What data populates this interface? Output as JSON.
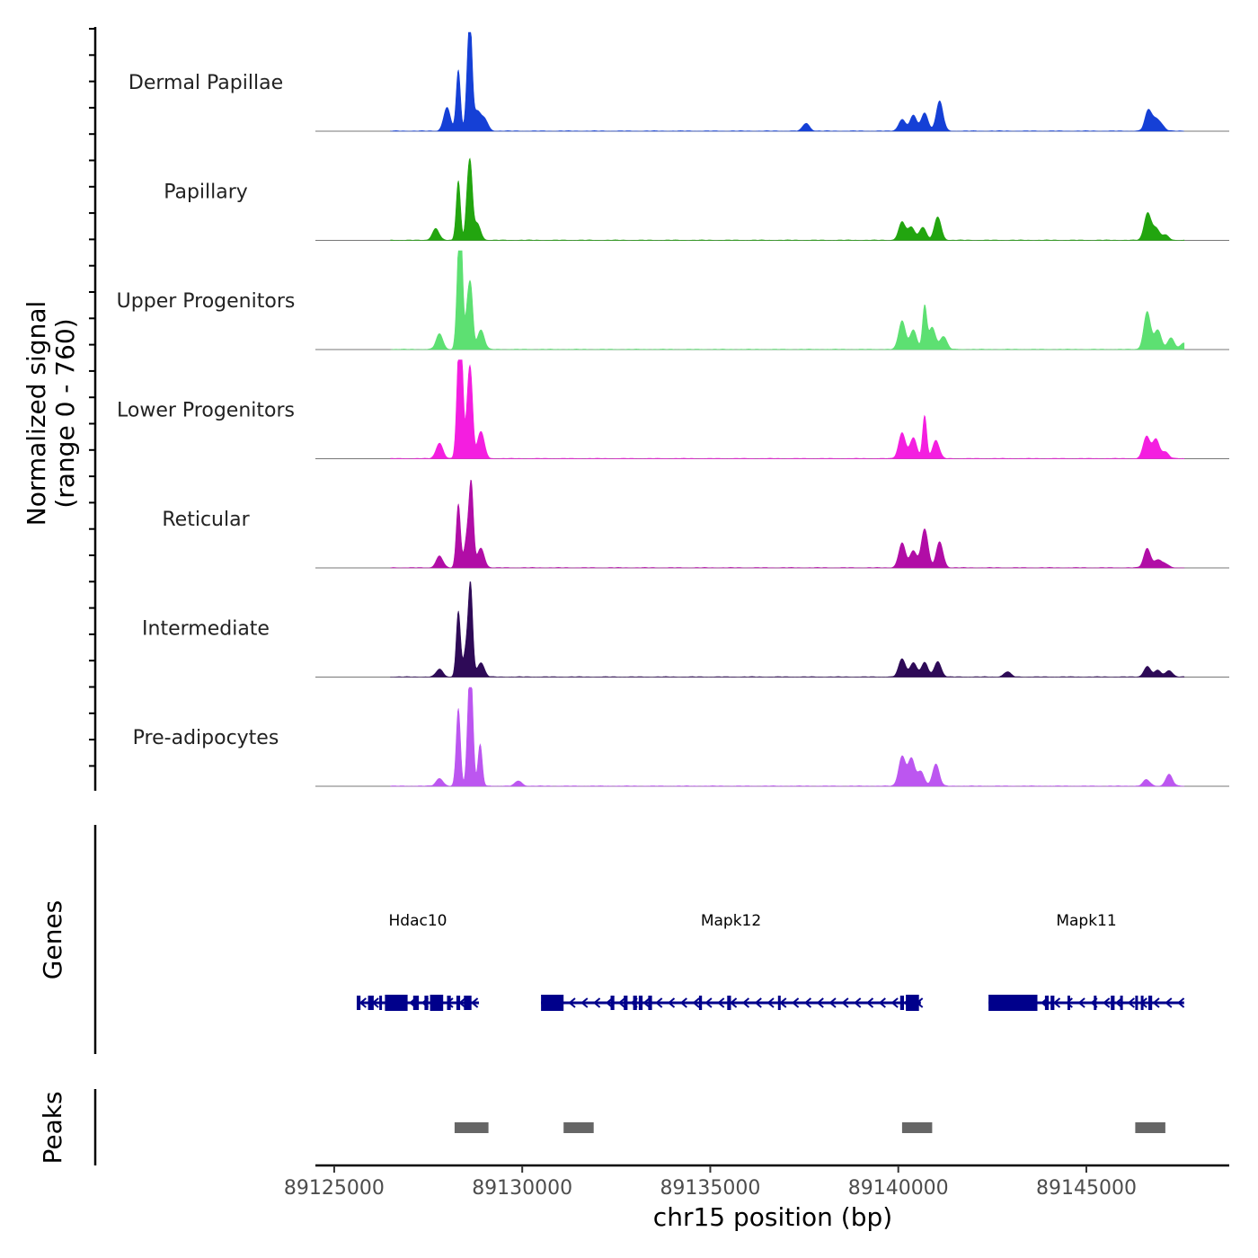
{
  "chart_data": {
    "type": "area",
    "title": "",
    "xlabel": "chr15 position (bp)",
    "ylabel": [
      "Normalized signal",
      "(range 0 - 760)"
    ],
    "xlim": [
      89124500,
      89148800
    ],
    "signal_range": [
      0,
      760
    ],
    "x_ticks": [
      89125000,
      89130000,
      89135000,
      89140000,
      89145000
    ],
    "x_tick_labels": [
      "89125000",
      "89130000",
      "89135000",
      "89140000",
      "89145000"
    ],
    "tracks": [
      {
        "name": "Dermal Papillae",
        "color": "#1540d6",
        "peaks": [
          [
            89128000,
            180
          ],
          [
            89128300,
            470
          ],
          [
            89128550,
            320
          ],
          [
            89128620,
            710
          ],
          [
            89128800,
            150
          ],
          [
            89129000,
            90
          ],
          [
            89137550,
            60
          ],
          [
            89140100,
            90
          ],
          [
            89140400,
            120
          ],
          [
            89140700,
            140
          ],
          [
            89141100,
            230
          ],
          [
            89146650,
            160
          ],
          [
            89146850,
            80
          ],
          [
            89147000,
            40
          ]
        ]
      },
      {
        "name": "Papillary",
        "color": "#22a50f",
        "peaks": [
          [
            89127700,
            90
          ],
          [
            89128300,
            460
          ],
          [
            89128550,
            330
          ],
          [
            89128630,
            460
          ],
          [
            89128800,
            130
          ],
          [
            89140100,
            140
          ],
          [
            89140350,
            100
          ],
          [
            89140650,
            100
          ],
          [
            89141050,
            180
          ],
          [
            89146630,
            210
          ],
          [
            89146850,
            90
          ],
          [
            89147100,
            40
          ]
        ]
      },
      {
        "name": "Upper Progenitors",
        "color": "#5de072",
        "peaks": [
          [
            89127800,
            120
          ],
          [
            89128300,
            500
          ],
          [
            89128370,
            760
          ],
          [
            89128550,
            320
          ],
          [
            89128640,
            410
          ],
          [
            89128900,
            150
          ],
          [
            89140100,
            220
          ],
          [
            89140400,
            150
          ],
          [
            89140700,
            330
          ],
          [
            89140900,
            170
          ],
          [
            89141200,
            100
          ],
          [
            89146620,
            290
          ],
          [
            89146900,
            150
          ],
          [
            89147250,
            90
          ],
          [
            89147600,
            50
          ]
        ]
      },
      {
        "name": "Lower Progenitors",
        "color": "#f41ee0",
        "peaks": [
          [
            89127800,
            120
          ],
          [
            89128300,
            600
          ],
          [
            89128380,
            760
          ],
          [
            89128560,
            420
          ],
          [
            89128640,
            510
          ],
          [
            89128900,
            210
          ],
          [
            89140100,
            200
          ],
          [
            89140400,
            160
          ],
          [
            89140700,
            330
          ],
          [
            89141000,
            140
          ],
          [
            89146600,
            170
          ],
          [
            89146850,
            150
          ],
          [
            89147100,
            50
          ]
        ]
      },
      {
        "name": "Reticular",
        "color": "#b10da6",
        "peaks": [
          [
            89127800,
            90
          ],
          [
            89128300,
            490
          ],
          [
            89128570,
            300
          ],
          [
            89128650,
            460
          ],
          [
            89128900,
            150
          ],
          [
            89140100,
            190
          ],
          [
            89140400,
            130
          ],
          [
            89140700,
            300
          ],
          [
            89141100,
            200
          ],
          [
            89146620,
            150
          ],
          [
            89146900,
            60
          ],
          [
            89147100,
            30
          ]
        ]
      },
      {
        "name": "Intermediate",
        "color": "#2e0a57",
        "peaks": [
          [
            89127800,
            60
          ],
          [
            89128300,
            500
          ],
          [
            89128550,
            280
          ],
          [
            89128630,
            540
          ],
          [
            89128900,
            110
          ],
          [
            89140100,
            140
          ],
          [
            89140400,
            110
          ],
          [
            89140700,
            110
          ],
          [
            89141050,
            120
          ],
          [
            89142900,
            40
          ],
          [
            89146620,
            80
          ],
          [
            89146900,
            50
          ],
          [
            89147200,
            50
          ]
        ]
      },
      {
        "name": "Pre-adipocytes",
        "color": "#bc56f0",
        "peaks": [
          [
            89127800,
            60
          ],
          [
            89128300,
            600
          ],
          [
            89128580,
            520
          ],
          [
            89128650,
            630
          ],
          [
            89128880,
            320
          ],
          [
            89129900,
            40
          ],
          [
            89140100,
            230
          ],
          [
            89140350,
            210
          ],
          [
            89140600,
            110
          ],
          [
            89141000,
            170
          ],
          [
            89146600,
            50
          ],
          [
            89147200,
            90
          ]
        ]
      }
    ],
    "genes": [
      {
        "name": "Hdac10",
        "start": 89125600,
        "end": 89128850,
        "strand": "-",
        "exons": [
          [
            89125600,
            89125700
          ],
          [
            89125900,
            89126050
          ],
          [
            89126200,
            89126250
          ],
          [
            89126350,
            89126650
          ],
          [
            89126650,
            89126950
          ],
          [
            89127100,
            89127250
          ],
          [
            89127400,
            89127500
          ],
          [
            89127550,
            89127900
          ],
          [
            89128000,
            89128100
          ],
          [
            89128250,
            89128350
          ],
          [
            89128450,
            89128650
          ]
        ]
      },
      {
        "name": "Mapk12",
        "start": 89130500,
        "end": 89140600,
        "strand": "-",
        "exons": [
          [
            89130500,
            89131100
          ],
          [
            89132350,
            89132450
          ],
          [
            89132700,
            89132800
          ],
          [
            89132950,
            89133050
          ],
          [
            89133100,
            89133200
          ],
          [
            89133350,
            89133450
          ],
          [
            89134700,
            89134780
          ],
          [
            89135450,
            89135550
          ],
          [
            89136800,
            89136850
          ],
          [
            89140050,
            89140150
          ],
          [
            89140200,
            89140550
          ]
        ]
      },
      {
        "name": "Mapk11",
        "start": 89142400,
        "end": 89147600,
        "strand": "-",
        "exons": [
          [
            89142400,
            89143700
          ],
          [
            89143900,
            89144000
          ],
          [
            89144050,
            89144150
          ],
          [
            89144500,
            89144550
          ],
          [
            89145200,
            89145250
          ],
          [
            89145650,
            89145750
          ],
          [
            89145900,
            89145950
          ],
          [
            89146300,
            89146350
          ],
          [
            89146450,
            89146500
          ],
          [
            89146650,
            89146750
          ]
        ]
      }
    ],
    "peak_regions": [
      [
        89128200,
        89129100
      ],
      [
        89131100,
        89131900
      ],
      [
        89140100,
        89140900
      ],
      [
        89146300,
        89147100
      ]
    ]
  }
}
